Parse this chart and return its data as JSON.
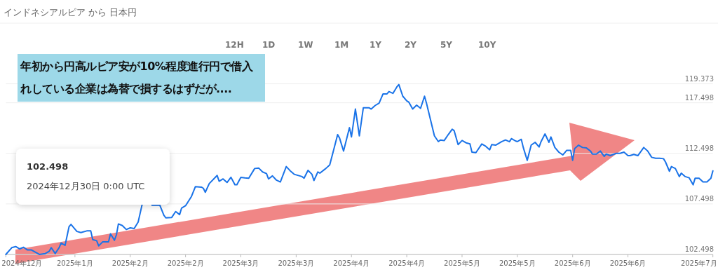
{
  "chart_data": {
    "type": "line",
    "title": "インドネシアルピア から 日本円",
    "annotations": [
      "12H",
      "1D",
      "1W",
      "1M",
      "1Y",
      "2Y",
      "5Y",
      "10Y",
      "年初から円高ルピア安が10%程度進行円で借入れしている企業は為替で損するはずだが....",
      "102.498",
      "2024年12月30日 0:00 UTC"
    ],
    "xlim": [
      "2024-12-30",
      "2025-06-27"
    ],
    "ylim": [
      102.498,
      119.373
    ],
    "xticks": [
      {
        "value": "2024-12-30",
        "label": "2024年12月"
      },
      {
        "value": "2025-01-16T12:00",
        "label": "2025年1月"
      },
      {
        "value": "2025-01-30T12:00",
        "label": "2025年2月"
      },
      {
        "value": "2025-02-13T12:00",
        "label": "2025年2月"
      },
      {
        "value": "2025-02-27T12:00",
        "label": "2025年3月"
      },
      {
        "value": "2025-03-13T12:00",
        "label": "2025年3月"
      },
      {
        "value": "2025-03-27T12:00",
        "label": "2025年4月"
      },
      {
        "value": "2025-04-10T12:00",
        "label": "2025年4月"
      },
      {
        "value": "2025-04-24T12:00",
        "label": "2025年5月"
      },
      {
        "value": "2025-05-08T12:00",
        "label": "2025年5月"
      },
      {
        "value": "2025-05-22T12:00",
        "label": "2025年6月"
      },
      {
        "value": "2025-06-05T12:00",
        "label": "2025年6月"
      },
      {
        "value": "2025-06-27",
        "label": "2025年7月"
      }
    ],
    "yticks": [
      102.498,
      107.498,
      112.498,
      117.498,
      119.373
    ],
    "grid": "y",
    "x": [
      "2024-12-30",
      "2024-12-31T12:00",
      "2025-01-01T12:00",
      "2025-01-02T12:00",
      "2025-01-03T12:00",
      "2025-01-04T12:00",
      "2025-01-05T12:00",
      "2025-01-07T12:00",
      "2025-01-09",
      "2025-01-10",
      "2025-01-10T12:00",
      "2025-01-11T12:00",
      "2025-01-12T12:00",
      "2025-01-13",
      "2025-01-14",
      "2025-01-15",
      "2025-01-15T12:00",
      "2025-01-17",
      "2025-01-18",
      "2025-01-19T12:00",
      "2025-01-20T12:00",
      "2025-01-21",
      "2025-01-22",
      "2025-01-22T12:00",
      "2025-01-23T12:00",
      "2025-01-25",
      "2025-01-25T12:00",
      "2025-01-26T12:00",
      "2025-01-27",
      "2025-01-27T12:00",
      "2025-01-28T12:00",
      "2025-01-29T12:00",
      "2025-01-30T12:00",
      "2025-01-31T12:00",
      "2025-02-01T12:00",
      "2025-02-02T12:00",
      "2025-02-04",
      "2025-02-05",
      "2025-02-07",
      "2025-02-08",
      "2025-02-08T12:00",
      "2025-02-10",
      "2025-02-11",
      "2025-02-12",
      "2025-02-12T12:00",
      "2025-02-13T12:00",
      "2025-02-15",
      "2025-02-16",
      "2025-02-17T12:00",
      "2025-02-18",
      "2025-02-18T12:00",
      "2025-02-19T12:00",
      "2025-02-21T12:00",
      "2025-02-22",
      "2025-02-23",
      "2025-02-24",
      "2025-02-25",
      "2025-02-26",
      "2025-02-26T12:00",
      "2025-02-27T12:00",
      "2025-02-28T12:00",
      "2025-03-01T12:00",
      "2025-03-03",
      "2025-03-04",
      "2025-03-05",
      "2025-03-06",
      "2025-03-06T12:00",
      "2025-03-07T12:00",
      "2025-03-08T12:00",
      "2025-03-09T12:00",
      "2025-03-11",
      "2025-03-12",
      "2025-03-13",
      "2025-03-15",
      "2025-03-15T12:00",
      "2025-03-16T12:00",
      "2025-03-17T12:00",
      "2025-03-18",
      "2025-03-19",
      "2025-03-19T12:00",
      "2025-03-21",
      "2025-03-22",
      "2025-03-23",
      "2025-03-24",
      "2025-03-24T12:00",
      "2025-03-25T12:00",
      "2025-03-27",
      "2025-03-27T12:00",
      "2025-03-28T12:00",
      "2025-03-29T12:00",
      "2025-03-30T12:00",
      "2025-04-01",
      "2025-04-01T12:00",
      "2025-04-02T12:00",
      "2025-04-03T12:00",
      "2025-04-04T12:00",
      "2025-04-05T12:00",
      "2025-04-06",
      "2025-04-07",
      "2025-04-08",
      "2025-04-08T12:00",
      "2025-04-09T12:00",
      "2025-04-10T12:00",
      "2025-04-11",
      "2025-04-12",
      "2025-04-13",
      "2025-04-14",
      "2025-04-15",
      "2025-04-15T12:00",
      "2025-04-16T12:00",
      "2025-04-17T12:00",
      "2025-04-18T12:00",
      "2025-04-19",
      "2025-04-20",
      "2025-04-21",
      "2025-04-22",
      "2025-04-22T12:00",
      "2025-04-23T12:00",
      "2025-04-24T12:00",
      "2025-04-25T12:00",
      "2025-04-26T12:00",
      "2025-04-27",
      "2025-04-28",
      "2025-04-29T12:00",
      "2025-04-30T12:00",
      "2025-05-01T12:00",
      "2025-05-02",
      "2025-05-03",
      "2025-05-04T12:00",
      "2025-05-05T12:00",
      "2025-05-06T12:00",
      "2025-05-07",
      "2025-05-08",
      "2025-05-08T12:00",
      "2025-05-09T12:00",
      "2025-05-10",
      "2025-05-11",
      "2025-05-12",
      "2025-05-13",
      "2025-05-14",
      "2025-05-14T12:00",
      "2025-05-15T12:00",
      "2025-05-16T12:00",
      "2025-05-17",
      "2025-05-18",
      "2025-05-19",
      "2025-05-20",
      "2025-05-21",
      "2025-05-22",
      "2025-05-22T12:00",
      "2025-05-23",
      "2025-05-24",
      "2025-05-25",
      "2025-05-26",
      "2025-05-27",
      "2025-05-27T12:00",
      "2025-05-28T12:00",
      "2025-05-29T12:00",
      "2025-05-30T12:00",
      "2025-05-31",
      "2025-06-01",
      "2025-06-02T12:00",
      "2025-06-03T12:00",
      "2025-06-04T12:00",
      "2025-06-05T12:00",
      "2025-06-06",
      "2025-06-07",
      "2025-06-08",
      "2025-06-09T12:00",
      "2025-06-10T12:00",
      "2025-06-11T12:00",
      "2025-06-12T12:00",
      "2025-06-13T12:00",
      "2025-06-14T12:00",
      "2025-06-15",
      "2025-06-16",
      "2025-06-16T12:00",
      "2025-06-17T12:00",
      "2025-06-18T12:00",
      "2025-06-19",
      "2025-06-20",
      "2025-06-21",
      "2025-06-22",
      "2025-06-22T12:00",
      "2025-06-23T12:00",
      "2025-06-24T12:00",
      "2025-06-25T12:00",
      "2025-06-26T12:00",
      "2025-06-27"
    ],
    "series": [
      {
        "color": "#1a73e8",
        "values": [
          102.5,
          103.17,
          103.28,
          103.05,
          103.21,
          102.94,
          102.94,
          102.5,
          102.59,
          102.82,
          103.17,
          102.59,
          103.17,
          103.63,
          103.4,
          105.24,
          105.47,
          104.78,
          104.67,
          104.83,
          104.83,
          103.97,
          103.86,
          103.35,
          103.74,
          103.74,
          104.55,
          103.9,
          104.44,
          105.52,
          105.36,
          104.97,
          105.13,
          105.06,
          105.7,
          107.43,
          null,
          107.36,
          107.36,
          106.39,
          106.12,
          106.16,
          106.74,
          106.44,
          107.09,
          107.32,
          108.24,
          109.21,
          109.16,
          109.05,
          108.65,
          109.51,
          110.31,
          109.74,
          109.97,
          109.62,
          110.13,
          109.39,
          109.39,
          110.13,
          110.08,
          110.04,
          111.0,
          111.05,
          110.66,
          110.5,
          109.97,
          110.27,
          109.85,
          109.67,
          111.19,
          110.77,
          110.43,
          110.2,
          110.04,
          110.82,
          110.43,
          109.81,
          110.66,
          110.54,
          111.0,
          111.35,
          112.85,
          114.35,
          114.0,
          112.73,
          115.04,
          114.12,
          116.88,
          114.23,
          117.0,
          117.0,
          116.88,
          117.23,
          117.46,
          118.38,
          118.38,
          118.61,
          118.43,
          119.07,
          119.3,
          118.15,
          117.69,
          117.57,
          116.88,
          117.27,
          116.95,
          118.15,
          117.46,
          115.85,
          114.23,
          113.66,
          113.82,
          113.77,
          114.35,
          114.88,
          114.74,
          113.36,
          113.77,
          113.54,
          113.43,
          112.62,
          112.57,
          113.43,
          113.2,
          112.85,
          113.36,
          113.31,
          113.65,
          113.82,
          113.65,
          113.96,
          113.73,
          113.66,
          113.89,
          113.08,
          111.81,
          113.31,
          113.59,
          113.13,
          113.66,
          114.42,
          113.59,
          114.12,
          113.08,
          112.62,
          112.34,
          112.8,
          112.8,
          111.81,
          112.96,
          113.31,
          113.08,
          113.03,
          112.73,
          112.43,
          112.43,
          112.73,
          112.2,
          112.43,
          112.27,
          112.5,
          112.5,
          112.62,
          112.27,
          112.27,
          112.39,
          112.27,
          113.08,
          112.73,
          112.11,
          112.02,
          112.02,
          111.97,
          111.65,
          110.73,
          111.19,
          111.0,
          110.2,
          110.54,
          110.2,
          110.08,
          109.39,
          110.04,
          110.04,
          109.67,
          109.67,
          110.04,
          110.77
        ]
      }
    ]
  }
}
